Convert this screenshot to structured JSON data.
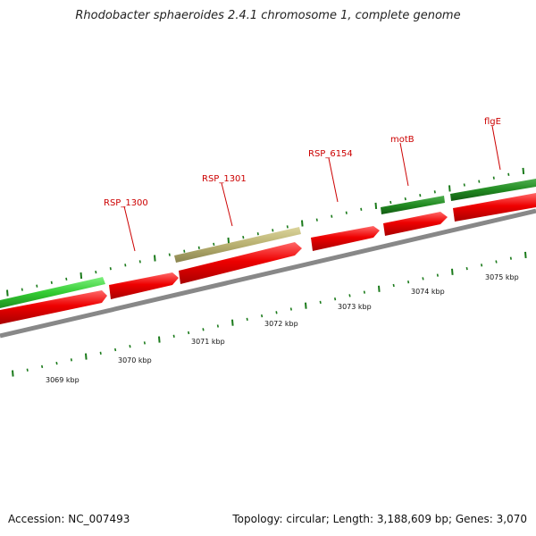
{
  "title": "Rhodobacter sphaeroides 2.4.1 chromosome 1, complete genome",
  "footer": {
    "accession": "Accession: NC_007493",
    "summary": "Topology: circular; Length: 3,188,609 bp; Genes: 3,070"
  },
  "gene_labels": [
    "RSP_1300",
    "RSP_1301",
    "RSP_6154",
    "motB",
    "flgE"
  ],
  "kbp_labels": [
    "3069 kbp",
    "3070 kbp",
    "3071 kbp",
    "3072 kbp",
    "3073 kbp",
    "3074 kbp",
    "3075 kbp"
  ],
  "colors": {
    "cds": "#e00000",
    "gene_bright_green": "#33cc33",
    "gene_olive": "#b8b070",
    "gene_dark_green": "#228b22",
    "backbone": "#888888",
    "tick": "#1a7a1a",
    "label": "#cc0000"
  }
}
